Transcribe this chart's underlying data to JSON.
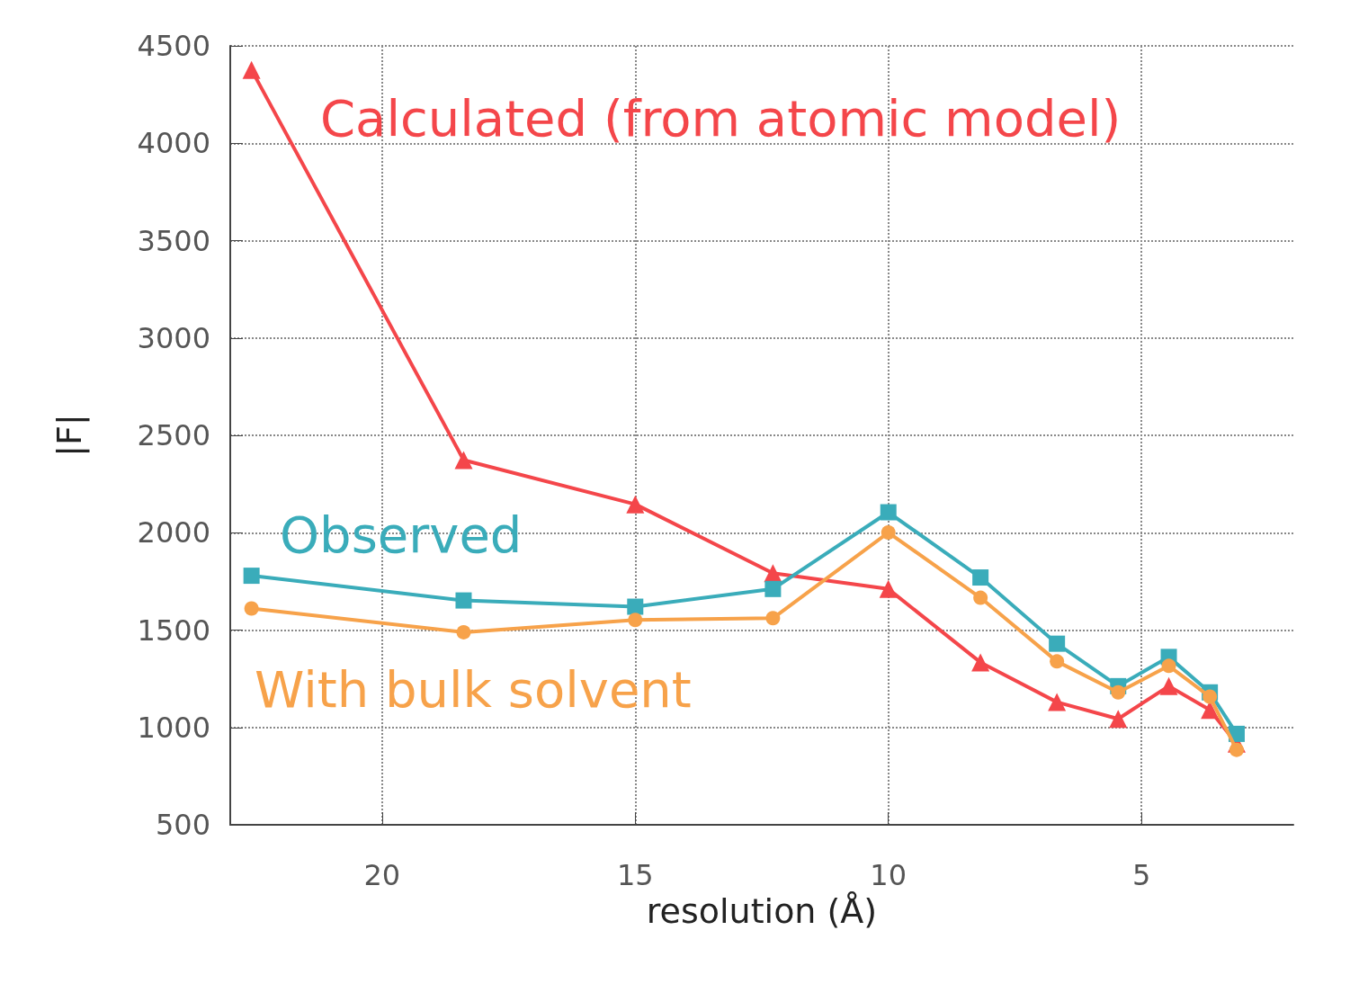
{
  "chart_data": {
    "type": "line",
    "xlabel": "resolution (Å)",
    "ylabel": "|F|",
    "xlim": [
      23,
      2
    ],
    "xticks": [
      20,
      15,
      10,
      5
    ],
    "ylim": [
      500,
      4500
    ],
    "yticks": [
      500,
      1000,
      1500,
      2000,
      2500,
      3000,
      3500,
      4000,
      4500
    ],
    "grid": true,
    "legend": false,
    "line_style": "solid",
    "x": [
      22.58,
      18.39,
      15,
      12.28,
      10,
      8.18,
      6.67,
      5.46,
      4.46,
      3.65,
      3.12
    ],
    "series": [
      {
        "name": "With bulk solvent",
        "color": "#f7a24a",
        "marker": "circle",
        "values": [
          1611,
          1489,
          1552,
          1561,
          2001,
          1666,
          1339,
          1180,
          1316,
          1158,
          885
        ]
      },
      {
        "name": "Observed",
        "color": "#3aacba",
        "marker": "square",
        "values": [
          1779,
          1652,
          1620,
          1711,
          2105,
          1770,
          1430,
          1212,
          1362,
          1180,
          967
        ]
      },
      {
        "name": "Calculated (from atomic model)",
        "color": "#f4464a",
        "marker": "triangle",
        "values": [
          4377,
          2373,
          2146,
          1792,
          1711,
          1334,
          1130,
          1044,
          1212,
          1090,
          917
        ]
      }
    ]
  }
}
